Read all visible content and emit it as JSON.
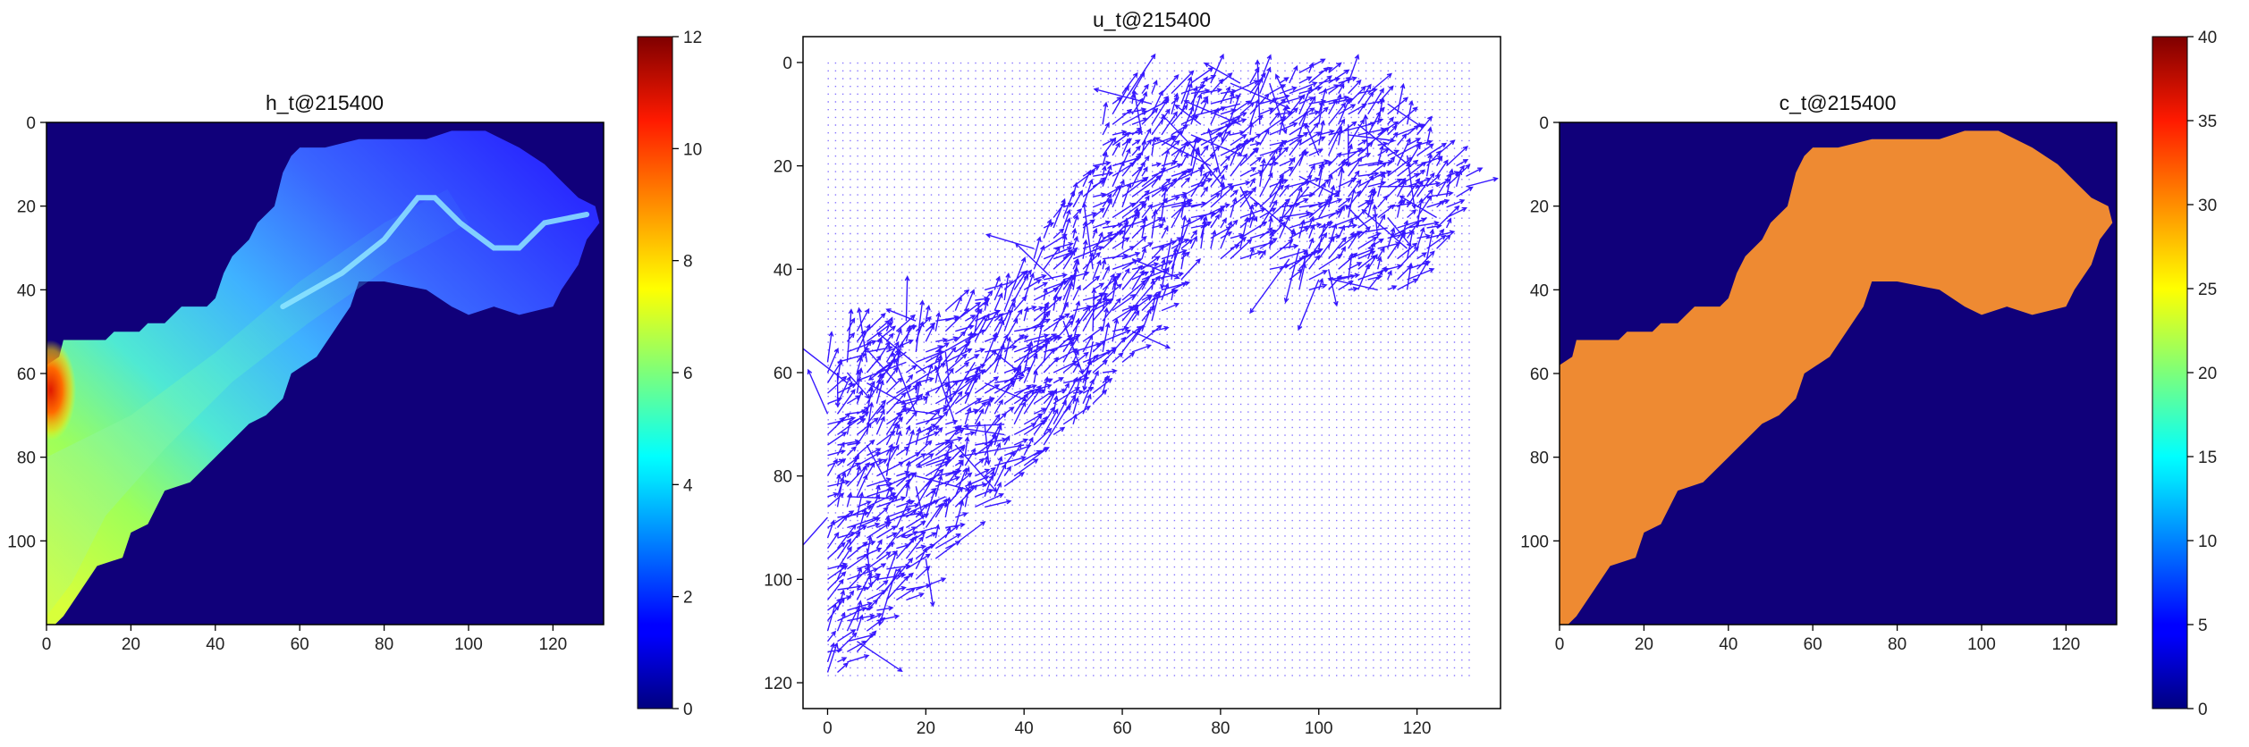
{
  "chart_data": [
    {
      "type": "heatmap",
      "title": "h_t@215400",
      "xlim": [
        0,
        132
      ],
      "ylim": [
        120,
        0
      ],
      "x_ticks": [
        "0",
        "20",
        "40",
        "60",
        "80",
        "100",
        "120"
      ],
      "y_ticks": [
        "0",
        "20",
        "40",
        "60",
        "80",
        "100"
      ],
      "colormap": "jet",
      "background_color": "#10007a",
      "colorbar": {
        "range": [
          0,
          12
        ],
        "ticks": [
          "0",
          "2",
          "4",
          "6",
          "8",
          "10",
          "12"
        ]
      },
      "field_description": "water depth field over a channel domain; values about 2-4 in the upper-right region rising to about 6-7 toward the lower-left, with a local maximum near 10-11 at x≈0-3, y≈58-70; 0 outside the domain"
    },
    {
      "type": "quiver",
      "title": "u_t@215400",
      "xlim": [
        -5,
        137
      ],
      "ylim": [
        125,
        -5
      ],
      "x_ticks": [
        "0",
        "20",
        "40",
        "60",
        "80",
        "100",
        "120"
      ],
      "y_ticks": [
        "0",
        "20",
        "40",
        "60",
        "80",
        "100",
        "120"
      ],
      "grid_x": [
        0,
        131
      ],
      "grid_y": [
        0,
        119
      ],
      "arrow_color": "#2200ff",
      "flow_description": "dense vector field; large arrows inside the wet domain oriented along the channel from lower-left toward upper-right, near-zero arrows (dots) outside"
    },
    {
      "type": "heatmap",
      "title": "c_t@215400",
      "xlim": [
        0,
        132
      ],
      "ylim": [
        120,
        0
      ],
      "x_ticks": [
        "0",
        "20",
        "40",
        "60",
        "80",
        "100",
        "120"
      ],
      "y_ticks": [
        "0",
        "20",
        "40",
        "60",
        "80",
        "100"
      ],
      "colormap": "jet",
      "background_color": "#10007a",
      "fill_color": "#ee8a32",
      "colorbar": {
        "range": [
          0,
          40
        ],
        "ticks": [
          "0",
          "5",
          "10",
          "15",
          "20",
          "25",
          "30",
          "35",
          "40"
        ]
      },
      "field_description": "concentration approximately uniform at about 30-31 inside the domain, 0 outside"
    }
  ]
}
